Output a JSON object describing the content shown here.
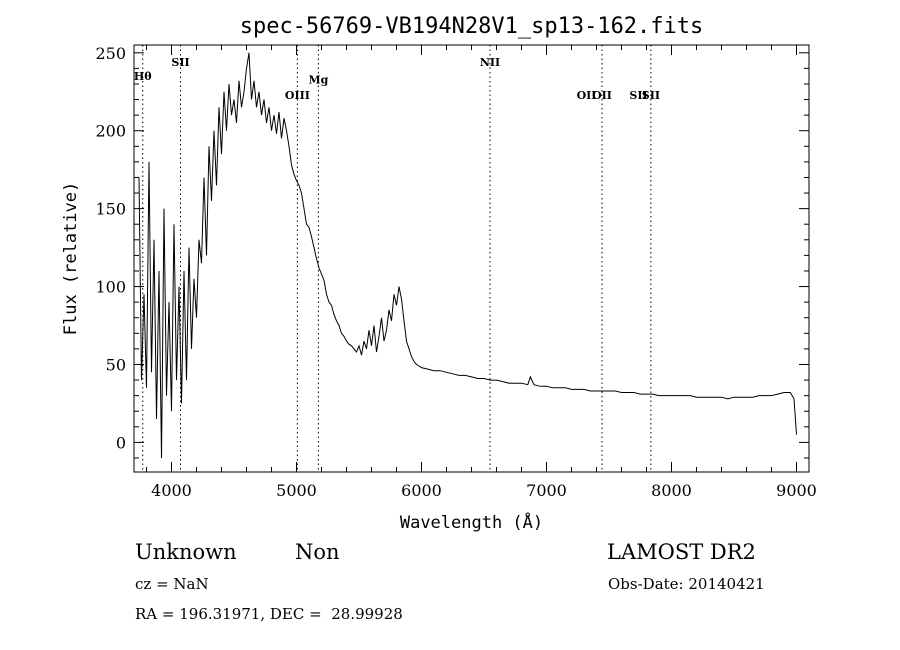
{
  "chart_data": {
    "type": "line",
    "title": "spec-56769-VB194N28V1_sp13-162.fits",
    "xlabel": "Wavelength (Å)",
    "ylabel": "Flux (relative)",
    "xlim": [
      3700,
      9100
    ],
    "ylim": [
      -19,
      255
    ],
    "xticks": [
      4000,
      5000,
      6000,
      7000,
      8000,
      9000
    ],
    "yticks": [
      0,
      50,
      100,
      150,
      200,
      250
    ],
    "grid": false,
    "line_color": "#000000",
    "series": [
      {
        "x": [
          3740,
          3760,
          3780,
          3800,
          3820,
          3840,
          3860,
          3880,
          3900,
          3920,
          3940,
          3960,
          3980,
          4000,
          4020,
          4040,
          4060,
          4080,
          4100,
          4120,
          4140,
          4160,
          4180,
          4200,
          4220,
          4240,
          4260,
          4280,
          4300,
          4320,
          4340,
          4360,
          4380,
          4400,
          4420,
          4440,
          4460,
          4480,
          4500,
          4520,
          4540,
          4560,
          4580,
          4600,
          4620,
          4640,
          4660,
          4680,
          4700,
          4720,
          4740,
          4760,
          4780,
          4800,
          4820,
          4840,
          4860,
          4880,
          4900,
          4920,
          4940,
          4960,
          4980,
          5000,
          5020,
          5040,
          5060,
          5080,
          5100,
          5120,
          5140,
          5160,
          5180,
          5200,
          5220,
          5240,
          5260,
          5280,
          5300,
          5320,
          5340,
          5360,
          5380,
          5400,
          5420,
          5440,
          5460,
          5480,
          5500,
          5520,
          5540,
          5560,
          5580,
          5600,
          5620,
          5640,
          5660,
          5680,
          5700,
          5720,
          5740,
          5760,
          5780,
          5800,
          5820,
          5840,
          5860,
          5880,
          5900,
          5920,
          5940,
          5960,
          5980,
          6000,
          6050,
          6100,
          6150,
          6200,
          6250,
          6300,
          6350,
          6400,
          6450,
          6500,
          6550,
          6600,
          6650,
          6700,
          6750,
          6800,
          6850,
          6870,
          6900,
          6950,
          7000,
          7050,
          7100,
          7150,
          7200,
          7250,
          7300,
          7350,
          7400,
          7450,
          7500,
          7550,
          7600,
          7650,
          7700,
          7750,
          7800,
          7850,
          7900,
          7950,
          8000,
          8050,
          8100,
          8150,
          8200,
          8250,
          8300,
          8350,
          8400,
          8450,
          8500,
          8550,
          8600,
          8650,
          8700,
          8750,
          8800,
          8850,
          8900,
          8950,
          8980,
          9000
        ],
        "y": [
          170,
          40,
          95,
          35,
          180,
          45,
          130,
          15,
          110,
          -10,
          150,
          30,
          90,
          20,
          140,
          40,
          100,
          25,
          110,
          40,
          125,
          60,
          105,
          80,
          130,
          115,
          170,
          120,
          190,
          155,
          200,
          165,
          215,
          185,
          225,
          200,
          230,
          210,
          220,
          205,
          232,
          215,
          225,
          240,
          250,
          220,
          232,
          215,
          225,
          210,
          220,
          205,
          215,
          200,
          210,
          198,
          212,
          195,
          208,
          200,
          190,
          178,
          172,
          168,
          165,
          160,
          150,
          140,
          138,
          132,
          125,
          118,
          112,
          108,
          104,
          95,
          90,
          88,
          82,
          78,
          75,
          70,
          68,
          65,
          63,
          62,
          60,
          58,
          62,
          56,
          65,
          60,
          72,
          62,
          75,
          58,
          68,
          80,
          65,
          72,
          85,
          78,
          95,
          88,
          100,
          92,
          78,
          65,
          60,
          55,
          52,
          50,
          49,
          48,
          47,
          46,
          46,
          45,
          44,
          43,
          43,
          42,
          41,
          41,
          40,
          40,
          39,
          38,
          38,
          38,
          37,
          42,
          37,
          36,
          36,
          35,
          35,
          35,
          34,
          34,
          34,
          33,
          33,
          33,
          33,
          33,
          32,
          32,
          32,
          31,
          31,
          31,
          30,
          30,
          30,
          30,
          30,
          30,
          29,
          29,
          29,
          29,
          29,
          28,
          29,
          29,
          29,
          29,
          30,
          30,
          30,
          31,
          32,
          32,
          28,
          5
        ]
      }
    ],
    "annotations": [
      {
        "label": "Hθ",
        "x": 3770,
        "y": 235,
        "vline": true
      },
      {
        "label": "SII",
        "x": 4072,
        "y": 244,
        "vline": true
      },
      {
        "label": "OIII",
        "x": 5007,
        "y": 223,
        "vline": true
      },
      {
        "label": "Mg",
        "x": 5175,
        "y": 233,
        "vline": true
      },
      {
        "label": "NII",
        "x": 6548,
        "y": 244,
        "vline": true
      },
      {
        "label": "OII",
        "x": 7320,
        "y": 223,
        "vline": false
      },
      {
        "label": "OII",
        "x": 7444,
        "y": 223,
        "vline": true
      },
      {
        "label": "SII",
        "x": 7736,
        "y": 223,
        "vline": false
      },
      {
        "label": "SII",
        "x": 7835,
        "y": 223,
        "vline": true
      }
    ]
  },
  "info": {
    "class": "Unknown",
    "subclass": "Non",
    "survey": "LAMOST DR2",
    "cz": "cz = NaN",
    "obs_date": "Obs-Date: 20140421",
    "coords": "RA = 196.31971, DEC =  28.99928"
  }
}
